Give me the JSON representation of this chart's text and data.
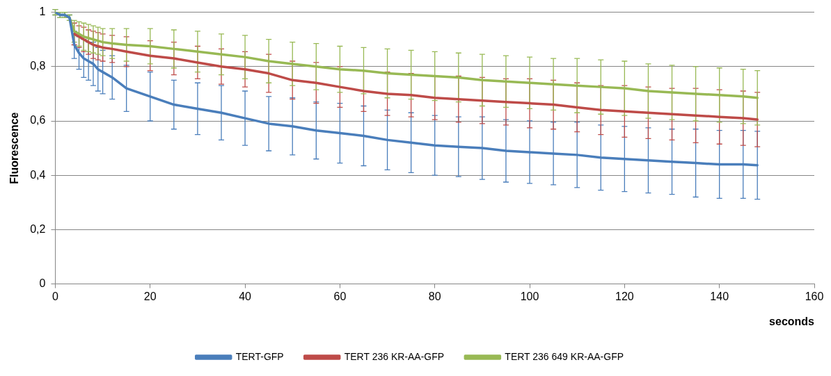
{
  "chart_data": {
    "type": "line",
    "xlabel": "seconds",
    "ylabel": "Fluorescence",
    "x": [
      0,
      1,
      2,
      3,
      4,
      5,
      6,
      7,
      8,
      9,
      10,
      12,
      15,
      20,
      25,
      30,
      35,
      40,
      45,
      50,
      55,
      60,
      65,
      70,
      75,
      80,
      85,
      90,
      95,
      100,
      105,
      110,
      115,
      120,
      125,
      130,
      135,
      140,
      145,
      148
    ],
    "xlim": [
      0,
      160
    ],
    "xticks": [
      0,
      20,
      40,
      60,
      80,
      100,
      120,
      140,
      160
    ],
    "ylim": [
      0,
      1
    ],
    "yticks": [
      0,
      {
        "value": 0.2,
        "label": "0,2"
      },
      {
        "value": 0.4,
        "label": "0,4"
      },
      {
        "value": 0.6,
        "label": "0,6"
      },
      {
        "value": 0.8,
        "label": "0,8"
      },
      1
    ],
    "grid": "y",
    "legend": "bottom",
    "line_style": "solid",
    "series": [
      {
        "name": "TERT-GFP",
        "color": "#4a7ebb",
        "values": [
          1,
          0.99,
          0.99,
          0.98,
          0.88,
          0.85,
          0.83,
          0.82,
          0.81,
          0.79,
          0.78,
          0.76,
          0.72,
          0.69,
          0.66,
          0.645,
          0.63,
          0.61,
          0.59,
          0.58,
          0.565,
          0.555,
          0.545,
          0.53,
          0.52,
          0.51,
          0.505,
          0.5,
          0.49,
          0.485,
          0.48,
          0.475,
          0.465,
          0.46,
          0.455,
          0.45,
          0.445,
          0.44,
          0.44,
          0.437
        ],
        "errors": [
          0.01,
          0.01,
          0.01,
          0.01,
          0.05,
          0.06,
          0.07,
          0.07,
          0.08,
          0.08,
          0.08,
          0.08,
          0.085,
          0.09,
          0.09,
          0.095,
          0.1,
          0.1,
          0.1,
          0.105,
          0.105,
          0.11,
          0.11,
          0.11,
          0.11,
          0.11,
          0.11,
          0.115,
          0.115,
          0.115,
          0.115,
          0.12,
          0.12,
          0.12,
          0.12,
          0.12,
          0.125,
          0.125,
          0.125,
          0.125
        ]
      },
      {
        "name": "TERT 236 KR-AA-GFP",
        "color": "#be4b48",
        "values": [
          null,
          null,
          null,
          null,
          0.92,
          0.91,
          0.9,
          0.89,
          0.88,
          0.875,
          0.87,
          0.865,
          0.855,
          0.84,
          0.83,
          0.815,
          0.8,
          0.79,
          0.775,
          0.75,
          0.74,
          0.725,
          0.71,
          0.7,
          0.695,
          0.685,
          0.68,
          0.675,
          0.67,
          0.665,
          0.66,
          0.65,
          0.64,
          0.635,
          0.63,
          0.625,
          0.62,
          0.615,
          0.61,
          0.605
        ],
        "errors": [
          null,
          null,
          null,
          null,
          0.04,
          0.04,
          0.045,
          0.045,
          0.05,
          0.05,
          0.05,
          0.05,
          0.055,
          0.055,
          0.06,
          0.06,
          0.065,
          0.065,
          0.07,
          0.07,
          0.075,
          0.075,
          0.075,
          0.08,
          0.08,
          0.08,
          0.085,
          0.085,
          0.085,
          0.09,
          0.09,
          0.09,
          0.09,
          0.095,
          0.095,
          0.095,
          0.1,
          0.1,
          0.1,
          0.1
        ]
      },
      {
        "name": "TERT 236 649 KR-AA-GFP",
        "color": "#98b954",
        "values": [
          1,
          0.99,
          0.99,
          0.98,
          0.93,
          0.92,
          0.91,
          0.905,
          0.9,
          0.895,
          0.89,
          0.885,
          0.88,
          0.875,
          0.865,
          0.855,
          0.845,
          0.835,
          0.82,
          0.81,
          0.8,
          0.79,
          0.785,
          0.775,
          0.77,
          0.765,
          0.76,
          0.75,
          0.745,
          0.74,
          0.735,
          0.73,
          0.725,
          0.72,
          0.71,
          0.705,
          0.7,
          0.695,
          0.69,
          0.685
        ],
        "errors": [
          0.01,
          0.01,
          0.01,
          0.01,
          0.04,
          0.045,
          0.05,
          0.05,
          0.05,
          0.05,
          0.05,
          0.055,
          0.06,
          0.065,
          0.07,
          0.075,
          0.075,
          0.08,
          0.08,
          0.08,
          0.085,
          0.085,
          0.085,
          0.09,
          0.09,
          0.09,
          0.09,
          0.095,
          0.095,
          0.095,
          0.095,
          0.1,
          0.1,
          0.1,
          0.1,
          0.1,
          0.1,
          0.1,
          0.1,
          0.1
        ]
      }
    ]
  }
}
